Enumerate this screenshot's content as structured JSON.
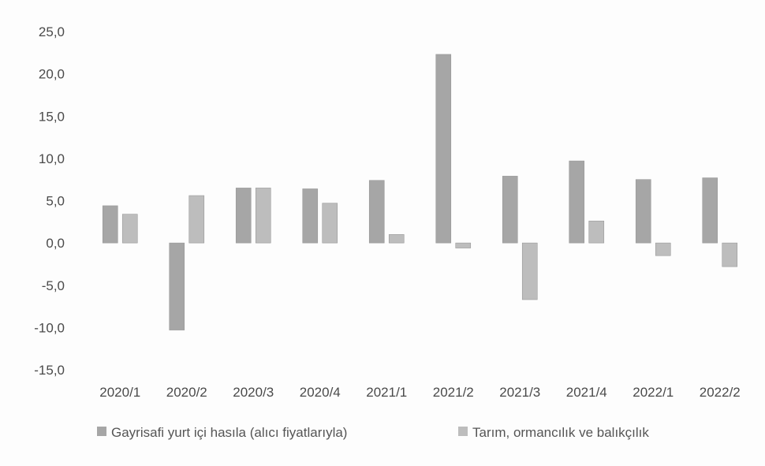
{
  "chart_data": {
    "type": "bar",
    "categories": [
      "2020/1",
      "2020/2",
      "2020/3",
      "2020/4",
      "2021/1",
      "2021/2",
      "2021/3",
      "2021/4",
      "2022/1",
      "2022/2"
    ],
    "series": [
      {
        "name": "Gayrisafi yurt içi hasıla (alıcı fiyatlarıyla)",
        "color": "#a6a6a6",
        "values": [
          4.4,
          -10.3,
          6.5,
          6.4,
          7.4,
          22.3,
          7.9,
          9.7,
          7.5,
          7.7
        ]
      },
      {
        "name": "Tarım, ormancılık ve balıkçılık",
        "color": "#bdbdbd",
        "values": [
          3.4,
          5.6,
          6.5,
          4.7,
          1.0,
          -0.6,
          -6.7,
          2.6,
          -1.5,
          -2.8
        ]
      }
    ],
    "y_tick_labels": [
      "25,0",
      "20,0",
      "15,0",
      "10,0",
      "5,0",
      "0,0",
      "-5,0",
      "-10,0",
      "-15,0"
    ],
    "y_ticks": [
      25,
      20,
      15,
      10,
      5,
      0,
      -5,
      -10,
      -15
    ],
    "ylim": [
      -15,
      25
    ],
    "grid": false,
    "legend_position": "bottom",
    "title": "",
    "xlabel": "",
    "ylabel": ""
  }
}
